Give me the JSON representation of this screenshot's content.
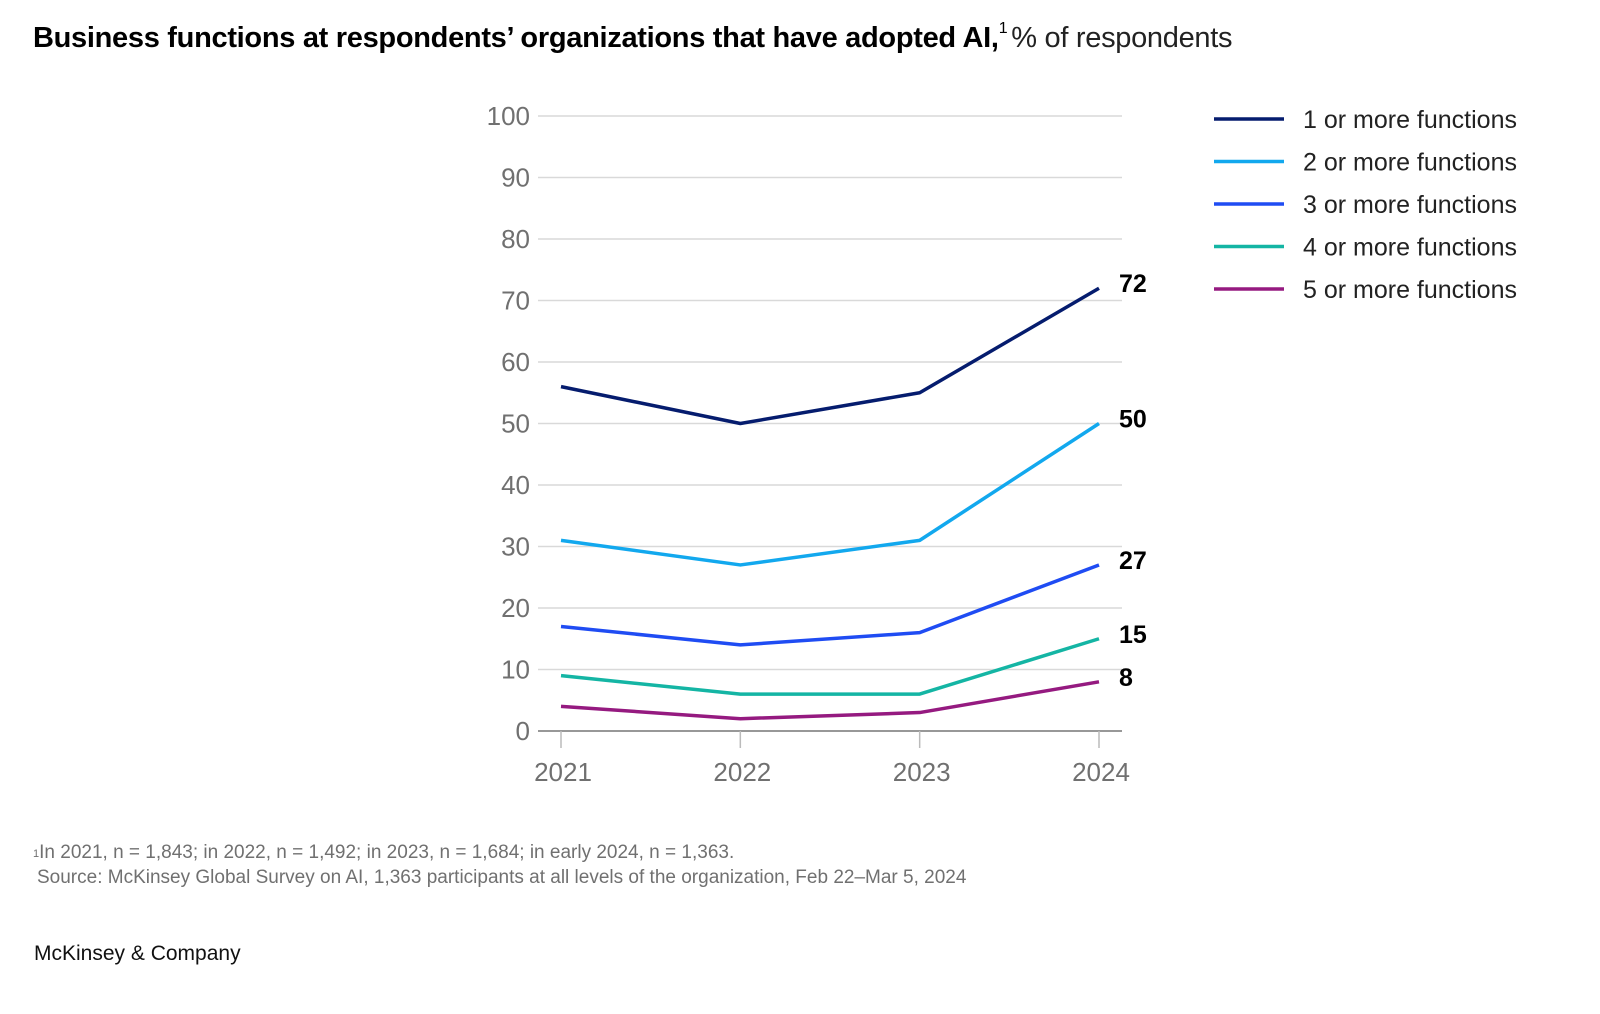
{
  "title": {
    "main": "Business functions at respondents’ organizations that have adopted AI,",
    "footnote_marker": "1",
    "unit": "% of respondents"
  },
  "chart_data": {
    "type": "line",
    "title": "Business functions at respondents’ organizations that have adopted AI",
    "subtitle": "% of respondents",
    "xlabel": "",
    "ylabel": "% of respondents",
    "x": [
      "2021",
      "2022",
      "2023",
      "2024"
    ],
    "ylim": [
      0,
      100
    ],
    "yticks": [
      0,
      10,
      20,
      30,
      40,
      50,
      60,
      70,
      80,
      90,
      100
    ],
    "grid": true,
    "legend_position": "top-right",
    "series": [
      {
        "name": "1 or more functions",
        "color": "#051c6e",
        "values": [
          56,
          50,
          55,
          72
        ],
        "end_label": "72"
      },
      {
        "name": "2 or more functions",
        "color": "#12a8ee",
        "values": [
          31,
          27,
          31,
          50
        ],
        "end_label": "50"
      },
      {
        "name": "3 or more functions",
        "color": "#1f4cf3",
        "values": [
          17,
          14,
          16,
          27
        ],
        "end_label": "27"
      },
      {
        "name": "4 or more functions",
        "color": "#14b5a4",
        "values": [
          9,
          6,
          6,
          15
        ],
        "end_label": "15"
      },
      {
        "name": "5 or more functions",
        "color": "#951a80",
        "values": [
          4,
          2,
          3,
          8
        ],
        "end_label": "8"
      }
    ]
  },
  "footnotes": {
    "marker": "1",
    "sample_sizes": "In 2021, n = 1,843; in 2022, n = 1,492; in 2023, n = 1,684; in early 2024, n = 1,363.",
    "source": "Source: McKinsey Global Survey on AI, 1,363 participants at all levels of the organization, Feb 22–Mar 5, 2024"
  },
  "brand": "McKinsey & Company"
}
